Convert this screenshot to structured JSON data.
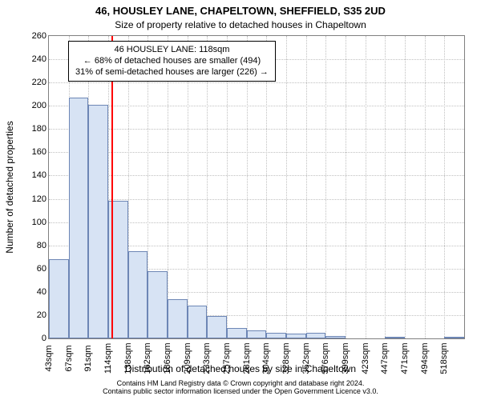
{
  "title": "46, HOUSLEY LANE, CHAPELTOWN, SHEFFIELD, S35 2UD",
  "subtitle": "Size of property relative to detached houses in Chapeltown",
  "xlabel": "Distribution of detached houses by size in Chapeltown",
  "ylabel": "Number of detached properties",
  "title_fontsize": 13,
  "subtitle_fontsize": 12,
  "axis_label_fontsize": 12,
  "tick_fontsize": 11,
  "annotation_fontsize": 11,
  "footer_fontsize": 9,
  "background_color": "#ffffff",
  "plot_border_color": "#808080",
  "grid_color": "#c0c0c0",
  "bar_fill": "#d7e3f4",
  "bar_edge": "#6d86b5",
  "refline_color": "#ff0000",
  "annotation_bg": "#ffffff",
  "annotation_border": "#000000",
  "x_start": 43,
  "x_step": 23.78,
  "y_max": 260,
  "y_tick_step": 20,
  "y_ticks": [
    0,
    20,
    40,
    60,
    80,
    100,
    120,
    140,
    160,
    180,
    200,
    220,
    240,
    260
  ],
  "x_tick_labels": [
    "43sqm",
    "67sqm",
    "91sqm",
    "114sqm",
    "138sqm",
    "162sqm",
    "186sqm",
    "209sqm",
    "233sqm",
    "257sqm",
    "281sqm",
    "304sqm",
    "328sqm",
    "352sqm",
    "376sqm",
    "399sqm",
    "423sqm",
    "447sqm",
    "471sqm",
    "494sqm",
    "518sqm"
  ],
  "bars": [
    68,
    207,
    201,
    118,
    75,
    58,
    34,
    28,
    19,
    9,
    7,
    5,
    4,
    5,
    2,
    0,
    0,
    1,
    0,
    0,
    1
  ],
  "reference_sqm": 118,
  "annotation_lines": [
    "46 HOUSLEY LANE: 118sqm",
    "← 68% of detached houses are smaller (494)",
    "31% of semi-detached houses are larger (226) →"
  ],
  "footer_line1": "Contains HM Land Registry data © Crown copyright and database right 2024.",
  "footer_line2": "Contains public sector information licensed under the Open Government Licence v3.0."
}
